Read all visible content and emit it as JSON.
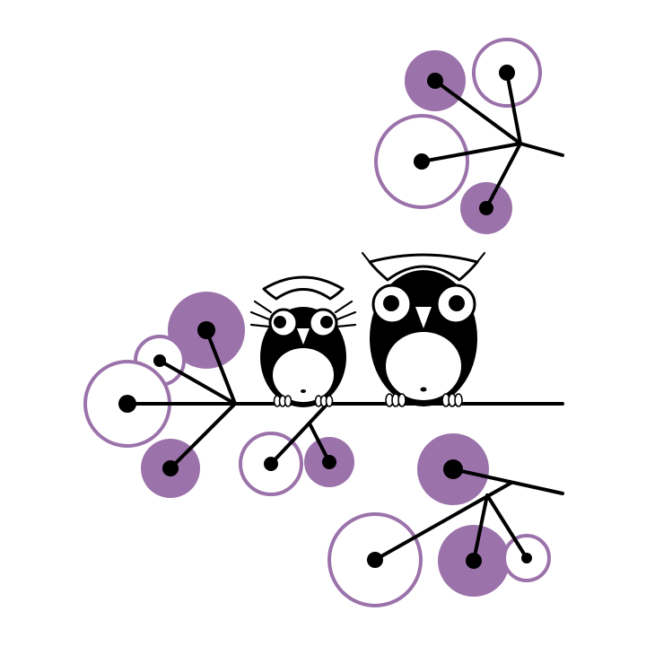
{
  "artwork": {
    "subject": "two-owls-on-branch",
    "colors": {
      "background": "#ffffff",
      "ink": "#000000",
      "accent": "#9b72aa",
      "ring": "#9b72aa"
    }
  }
}
